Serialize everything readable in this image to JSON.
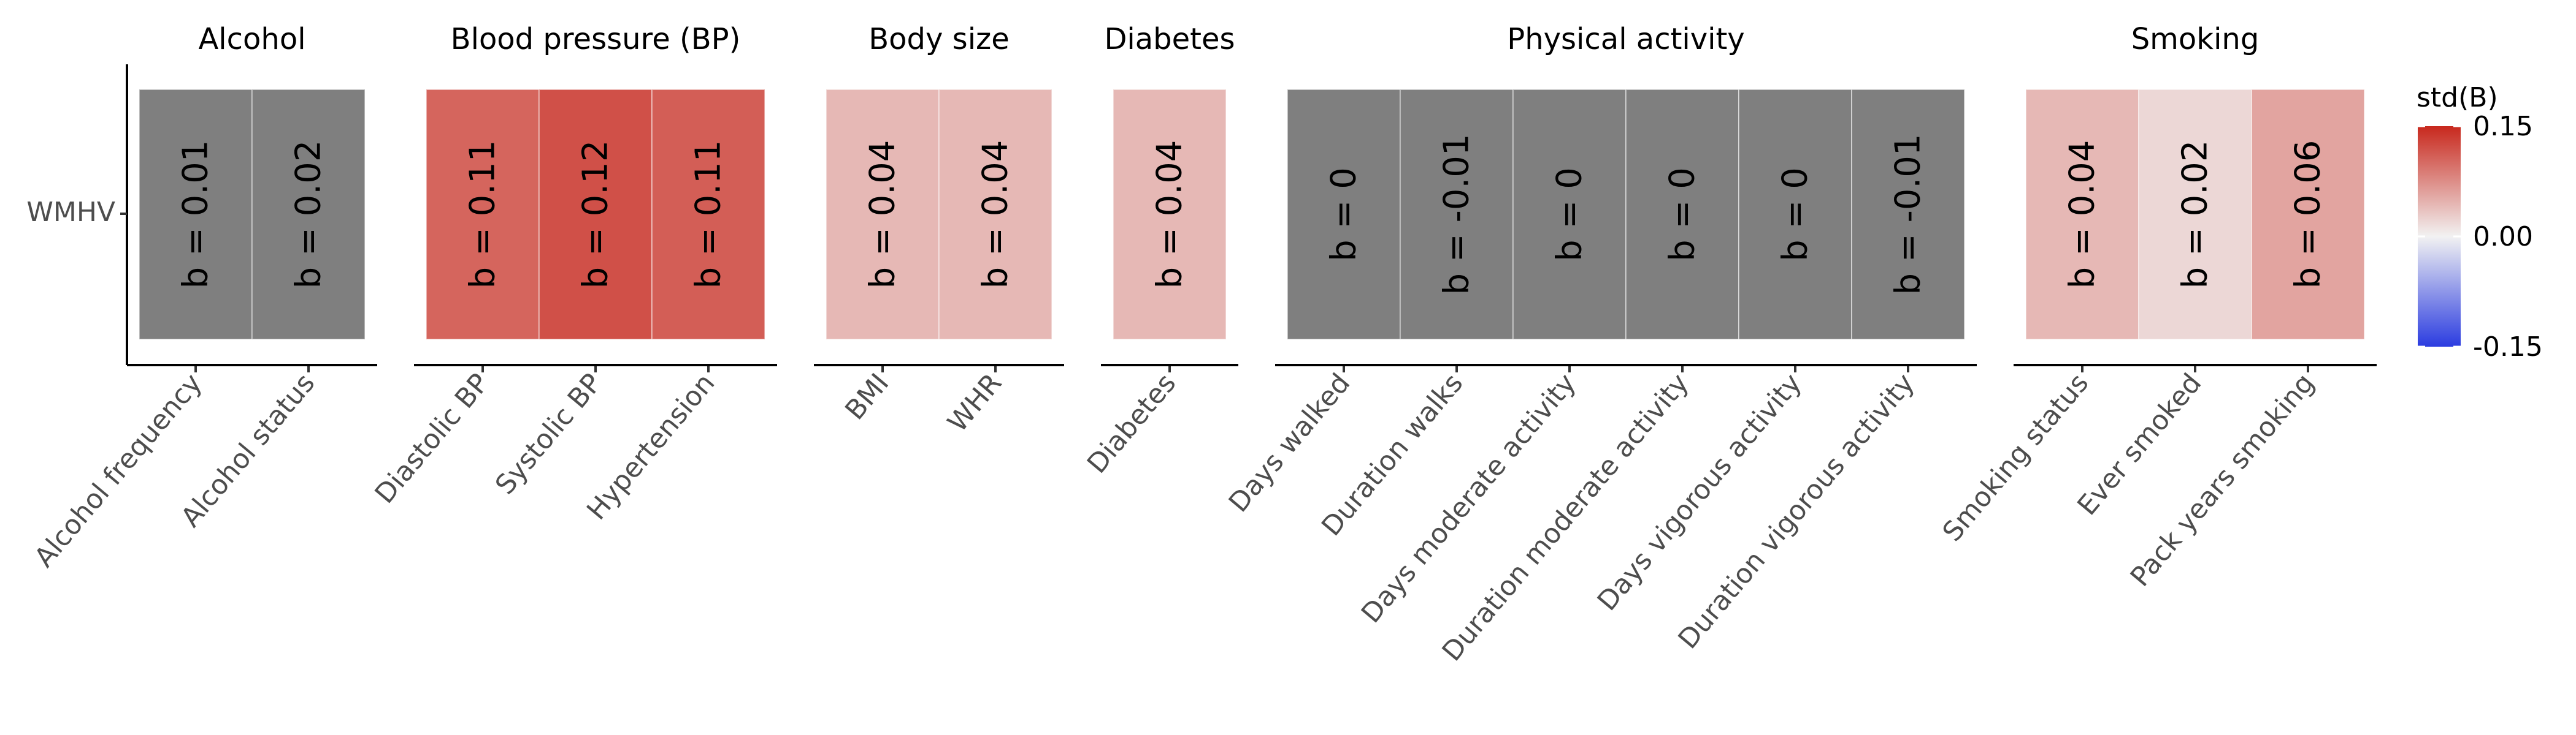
{
  "chart_data": {
    "type": "heatmap",
    "y_category": "WMHV",
    "value_label_prefix": "b = ",
    "na_color": "#7f7f7f",
    "legend": {
      "title": "std(B)",
      "placement": "right",
      "range": [
        -0.15,
        0.15
      ],
      "ticks": [
        "0.15",
        "0.00",
        "-0.15"
      ],
      "tick_values": [
        0.15,
        0,
        -0.15
      ],
      "colors": {
        "low": "#2b3ce0",
        "mid": "#f2f2f2",
        "high": "#c8281d"
      }
    },
    "panels": [
      {
        "title": "Alcohol",
        "cells": [
          {
            "x": "Alcohol frequency",
            "label": "0.01",
            "std": null
          },
          {
            "x": "Alcohol status",
            "label": "0.02",
            "std": null
          }
        ]
      },
      {
        "title": "Blood pressure (BP)",
        "cells": [
          {
            "x": "Diastolic BP",
            "label": "0.11",
            "std": 0.105
          },
          {
            "x": "Systolic BP",
            "label": "0.12",
            "std": 0.12
          },
          {
            "x": "Hypertension",
            "label": "0.11",
            "std": 0.11
          }
        ]
      },
      {
        "title": "Body size",
        "cells": [
          {
            "x": "BMI",
            "label": "0.04",
            "std": 0.043
          },
          {
            "x": "WHR",
            "label": "0.04",
            "std": 0.043
          }
        ]
      },
      {
        "title": "Diabetes",
        "cells": [
          {
            "x": "Diabetes",
            "label": "0.04",
            "std": 0.043
          }
        ]
      },
      {
        "title": "Physical activity",
        "cells": [
          {
            "x": "Days walked",
            "label": "0",
            "std": null
          },
          {
            "x": "Duration walks",
            "label": "-0.01",
            "std": null
          },
          {
            "x": "Days moderate activity",
            "label": "0",
            "std": null
          },
          {
            "x": "Duration moderate activity",
            "label": "0",
            "std": null
          },
          {
            "x": "Days vigorous activity",
            "label": "0",
            "std": null
          },
          {
            "x": "Duration vigorous activity",
            "label": "-0.01",
            "std": null
          }
        ]
      },
      {
        "title": "Smoking",
        "cells": [
          {
            "x": "Smoking status",
            "label": "0.04",
            "std": 0.043
          },
          {
            "x": "Ever smoked",
            "label": "0.02",
            "std": 0.02
          },
          {
            "x": "Pack years smoking",
            "label": "0.06",
            "std": 0.058
          }
        ]
      }
    ]
  }
}
